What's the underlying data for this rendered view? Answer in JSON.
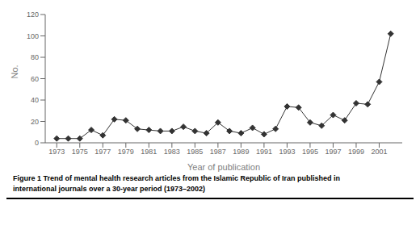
{
  "chart_data": {
    "type": "line",
    "x": [
      1973,
      1974,
      1975,
      1976,
      1977,
      1978,
      1979,
      1980,
      1981,
      1982,
      1983,
      1984,
      1985,
      1986,
      1987,
      1988,
      1989,
      1990,
      1991,
      1992,
      1993,
      1994,
      1995,
      1996,
      1997,
      1998,
      1999,
      2000,
      2001,
      2002
    ],
    "values": [
      4,
      4,
      4,
      12,
      7,
      22,
      21,
      13,
      12,
      11,
      11,
      15,
      11,
      9,
      19,
      11,
      9,
      14,
      8,
      13,
      34,
      33,
      19,
      16,
      26,
      21,
      37,
      36,
      57,
      102
    ],
    "color": "#333333",
    "marker": "diamond",
    "xlabel": "Year of publication",
    "ylabel": "No.",
    "xlim": [
      1972,
      2003
    ],
    "xticks": [
      1973,
      1975,
      1977,
      1979,
      1981,
      1983,
      1985,
      1987,
      1989,
      1991,
      1993,
      1995,
      1997,
      1999,
      2001
    ],
    "ylim": [
      0,
      120
    ],
    "yticks": [
      0,
      20,
      40,
      60,
      80,
      100,
      120
    ],
    "grid": false,
    "annotations": [
      "Figure 1 Trend of mental health research articles from the Islamic Republic of Iran published in",
      "international journals over a 30-year period (1973–2002)"
    ]
  }
}
